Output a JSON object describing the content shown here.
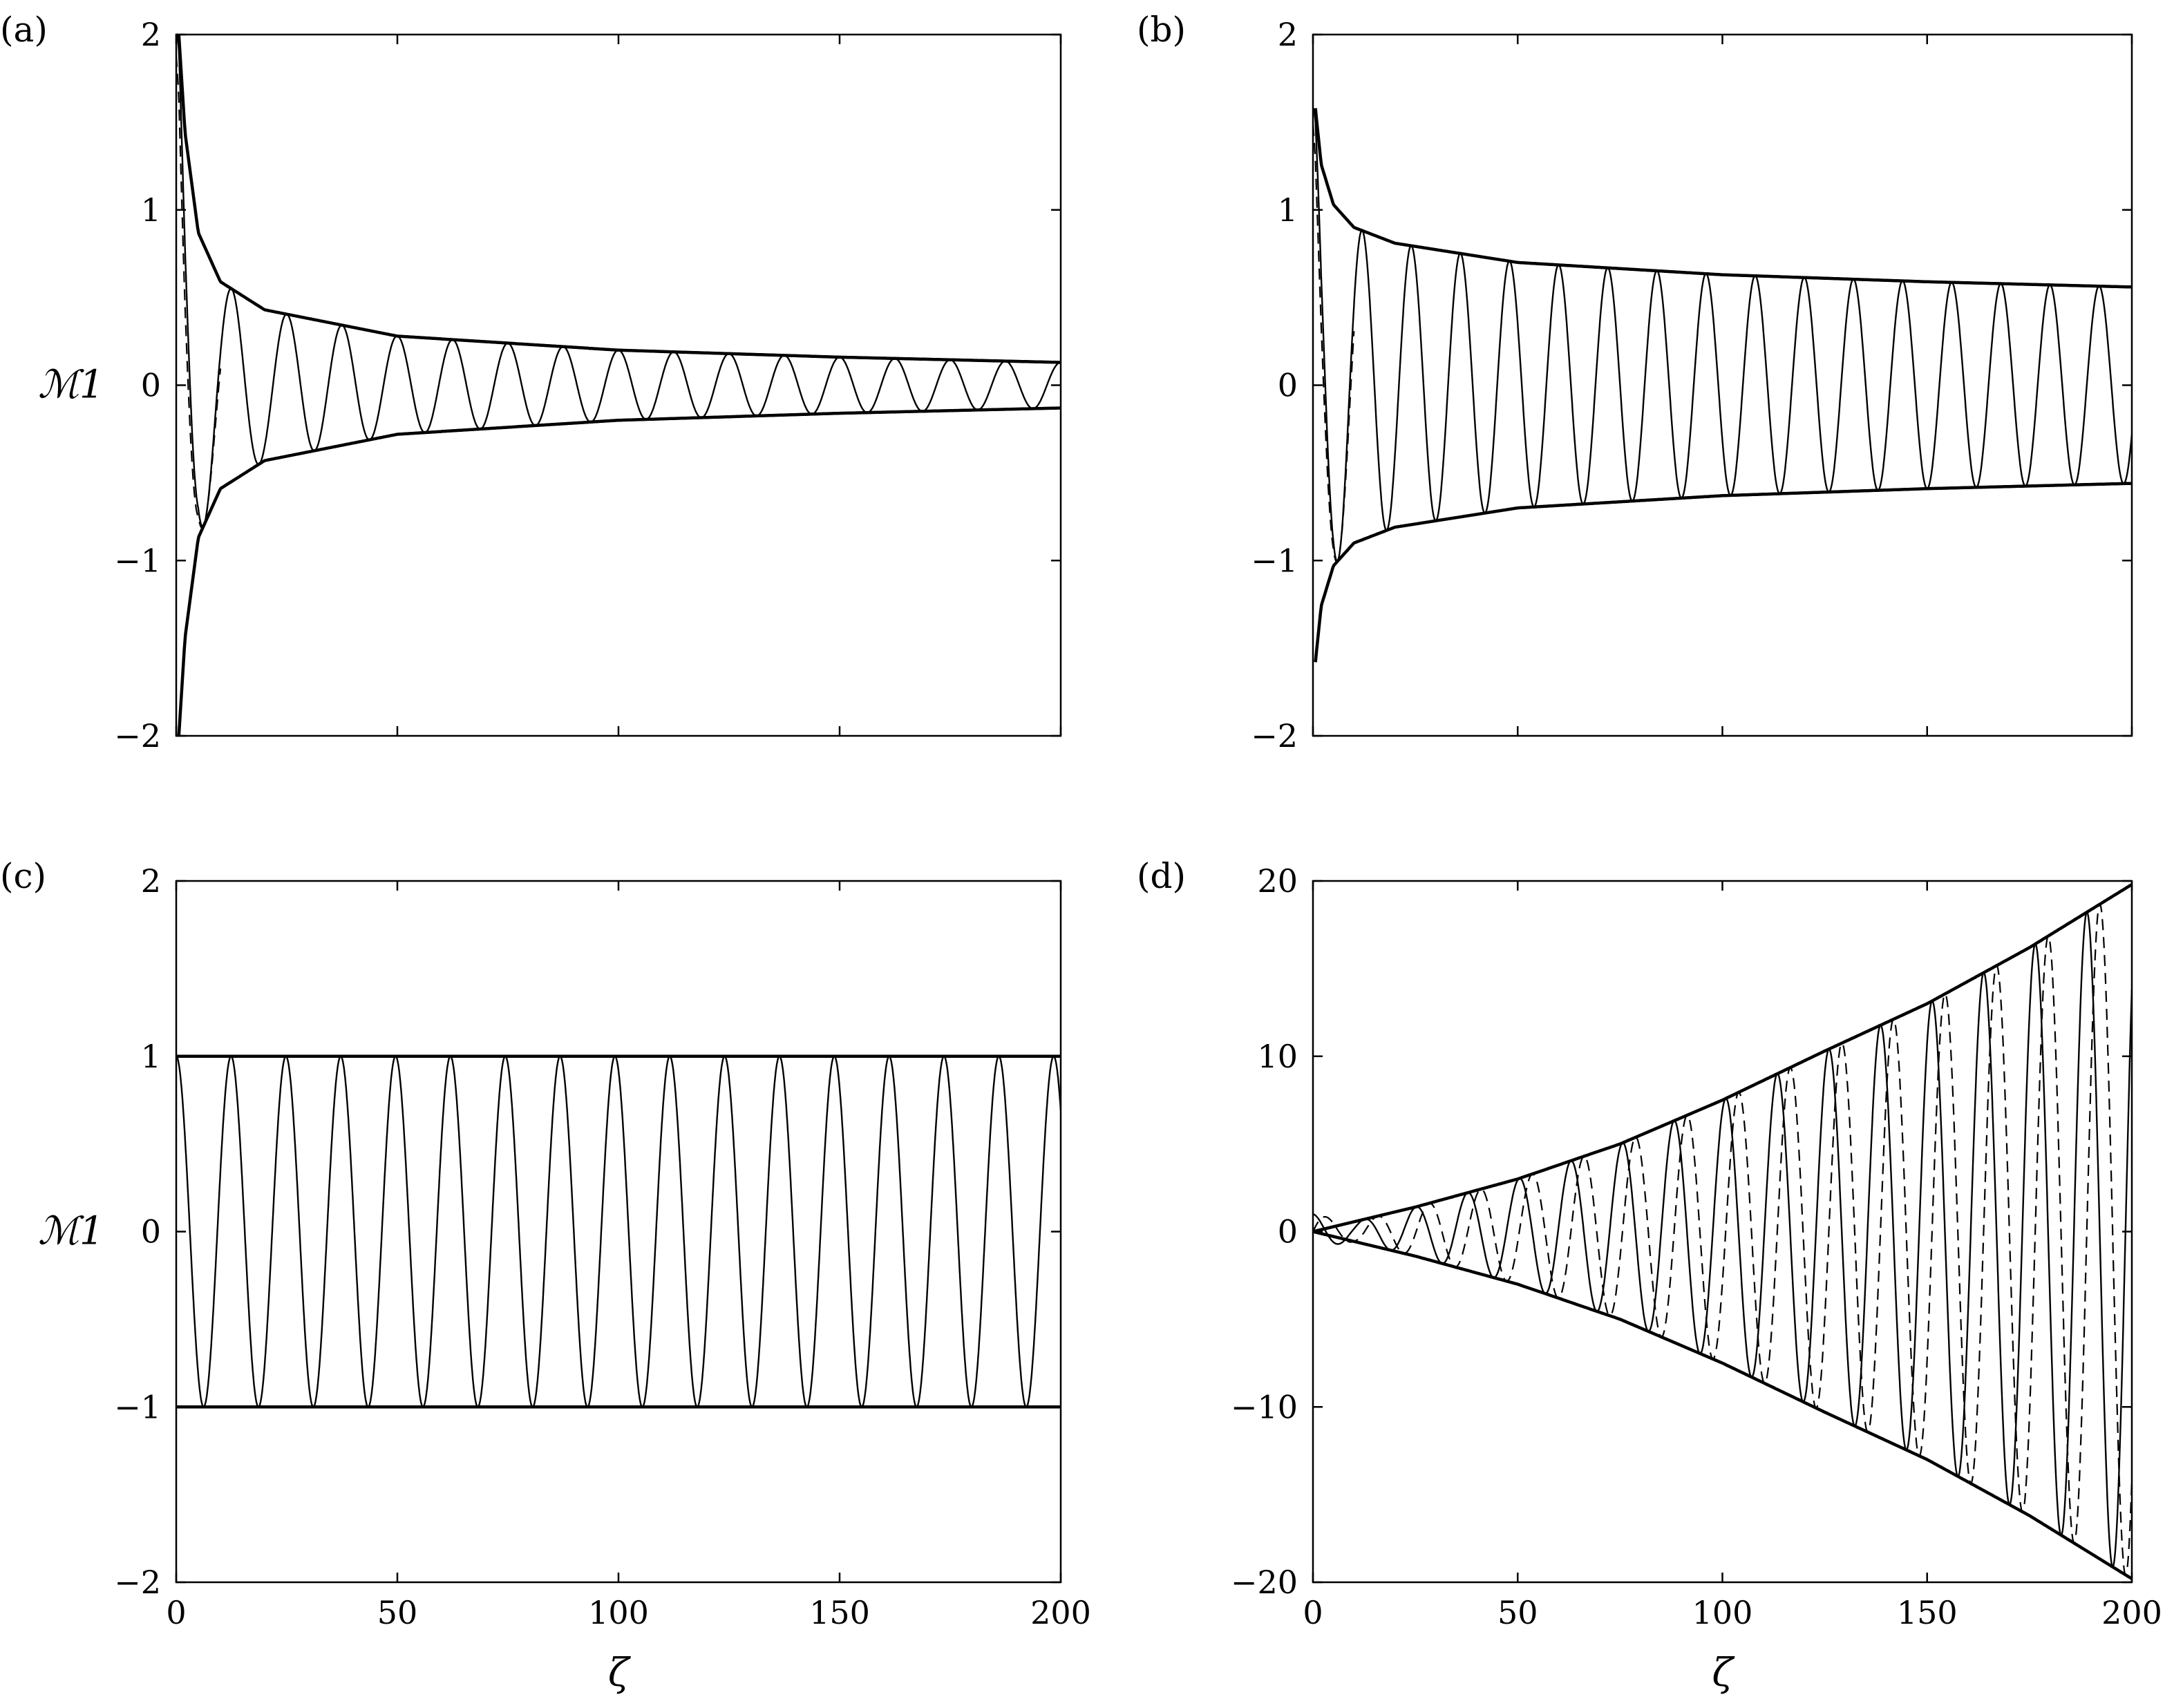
{
  "chart_data": [
    {
      "panel": "a",
      "panel_label": "(a)",
      "type": "line",
      "ylabel": "ℳ1",
      "xlabel": "",
      "xlim": [
        0,
        200
      ],
      "ylim": [
        -2,
        2
      ],
      "yticks": [
        -2,
        -1,
        0,
        1,
        2
      ],
      "xticks": [],
      "grid": false,
      "series": [
        {
          "style": "envelope",
          "line": "thick",
          "x": [
            0.6,
            2,
            5,
            10,
            20,
            50,
            100,
            150,
            200
          ],
          "values": [
            2.0,
            1.44,
            0.87,
            0.59,
            0.43,
            0.28,
            0.2,
            0.16,
            0.13
          ],
          "mirrored": true
        },
        {
          "style": "oscillation",
          "line": "thin-solid",
          "period": 12.5,
          "phase": "cos",
          "amplitude_follows": "envelope"
        },
        {
          "style": "oscillation",
          "line": "dashed",
          "x_range": [
            0,
            10
          ],
          "amplitude_follows": "envelope"
        }
      ]
    },
    {
      "panel": "b",
      "panel_label": "(b)",
      "type": "line",
      "ylabel": "",
      "xlabel": "",
      "xlim": [
        0,
        200
      ],
      "ylim": [
        -2,
        2
      ],
      "yticks": [
        -2,
        -1,
        0,
        1,
        2
      ],
      "xticks": [],
      "grid": false,
      "series": [
        {
          "style": "envelope",
          "line": "thick",
          "x": [
            0.6,
            2,
            5,
            10,
            20,
            50,
            100,
            150,
            200
          ],
          "values": [
            1.58,
            1.26,
            1.03,
            0.9,
            0.81,
            0.7,
            0.63,
            0.59,
            0.56
          ],
          "mirrored": true
        },
        {
          "style": "oscillation",
          "line": "thin-solid",
          "period": 12.0,
          "phase": "cos",
          "amplitude_follows": "envelope"
        },
        {
          "style": "oscillation",
          "line": "dashed",
          "x_range": [
            0,
            10
          ],
          "amplitude_follows": "envelope"
        }
      ]
    },
    {
      "panel": "c",
      "panel_label": "(c)",
      "type": "line",
      "ylabel": "ℳ1",
      "xlabel": "ζ",
      "xlim": [
        0,
        200
      ],
      "ylim": [
        -2,
        2
      ],
      "yticks": [
        -2,
        -1,
        0,
        1,
        2
      ],
      "xticks": [
        0,
        50,
        100,
        150,
        200
      ],
      "grid": false,
      "series": [
        {
          "style": "envelope",
          "line": "thick",
          "x": [
            0,
            200
          ],
          "values": [
            1,
            1
          ],
          "mirrored": true
        },
        {
          "style": "oscillation",
          "line": "thin-solid",
          "period": 12.4,
          "phase": "cos",
          "amplitude_follows": "envelope"
        }
      ]
    },
    {
      "panel": "d",
      "panel_label": "(d)",
      "type": "line",
      "ylabel": "",
      "xlabel": "ζ",
      "xlim": [
        0,
        200
      ],
      "ylim": [
        -20,
        20
      ],
      "yticks": [
        -20,
        -10,
        0,
        10,
        20
      ],
      "xticks": [
        0,
        50,
        100,
        150,
        200
      ],
      "grid": false,
      "series": [
        {
          "style": "envelope",
          "line": "thick",
          "x": [
            0,
            25,
            50,
            75,
            100,
            125,
            150,
            175,
            200
          ],
          "values": [
            0,
            1.4,
            3.0,
            5.0,
            7.5,
            10.3,
            13.0,
            16.2,
            19.8
          ],
          "mirrored": true
        },
        {
          "style": "oscillation",
          "line": "thin-solid",
          "period": 12.6,
          "phase": "cos",
          "amplitude_follows": "envelope"
        },
        {
          "style": "oscillation",
          "line": "dashed",
          "period": 12.6,
          "phase": "sin",
          "amplitude_follows": "envelope"
        }
      ]
    }
  ]
}
